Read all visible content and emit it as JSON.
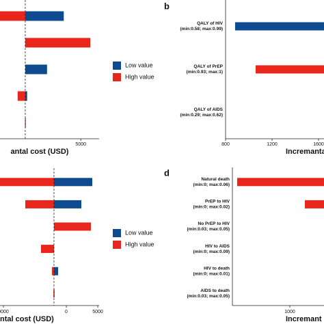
{
  "chart_data": [
    {
      "type": "tornado",
      "xlabel": "antal cost (USD)",
      "base": -3800,
      "categories": [
        null,
        null,
        null,
        null,
        null
      ],
      "series": [
        {
          "name": "Low value",
          "color": "#0d4a8f",
          "values": [
            2300,
            null,
            -350,
            -3500,
            -3750
          ]
        },
        {
          "name": "High value",
          "color": "#e8261c",
          "values": [
            -7800,
            6520,
            null,
            -5000,
            -3850
          ]
        }
      ],
      "xlim": [
        -7800,
        7900
      ],
      "xticks": [
        5000
      ]
    },
    {
      "type": "tornado",
      "panel": "b",
      "xlabel": "Incremantal",
      "base": 1700,
      "categories": [
        [
          "QALY of HIV",
          "(min:0.58; max:0.99)"
        ],
        [
          "QALY of PrEP",
          "(min:0.93; max:1)"
        ],
        [
          "QALY of AIDS",
          "(min:0.29; max:0.62)"
        ]
      ],
      "series": [
        {
          "color": "#0d4a8f",
          "values": [
            882,
            null,
            null
          ]
        },
        {
          "color": "#e8261c",
          "values": [
            null,
            1059,
            null
          ]
        }
      ],
      "xlim": [
        800,
        1647
      ],
      "xticks": [
        800,
        1200,
        1600
      ]
    },
    {
      "type": "tornado",
      "xlabel": "ntal cost (USD)",
      "base": -1960,
      "categories": [
        null,
        null,
        null,
        null,
        null,
        null
      ],
      "series": [
        {
          "name": "Low value",
          "color": "#0d4a8f",
          "values": [
            4130,
            2390,
            null,
            null,
            -1300,
            -1900
          ]
        },
        {
          "name": "High value",
          "color": "#e8261c",
          "values": [
            -10543,
            -6520,
            3910,
            -4020,
            -2280,
            -2050
          ]
        }
      ],
      "xlim": [
        -10543,
        5217
      ],
      "xticks": [
        {
          "value": -10000,
          "label": "0000"
        },
        0,
        5000
      ]
    },
    {
      "type": "tornado",
      "panel": "d",
      "xlabel": "Incremant",
      "base": 1700,
      "categories": [
        [
          "Natural death",
          "(min:0; max:0.06)"
        ],
        [
          "PrEP to HIV",
          "(min:0; max:0.02)"
        ],
        [
          "No PrEP to HIV",
          "(min:0.03; max:0.05)"
        ],
        [
          "HIV to AIDS",
          "(min:0; max:0.09)"
        ],
        [
          "HIV to death",
          "(min:0; max:0.01)"
        ],
        [
          "AIDS to death",
          "(min:0.03; max:0.05)"
        ]
      ],
      "series": [
        {
          "color": "#0d4a8f",
          "values": [
            null,
            null,
            null,
            null,
            null,
            null
          ]
        },
        {
          "color": "#e8261c",
          "values": [
            83,
            1262,
            null,
            null,
            null,
            null
          ]
        }
      ],
      "xlim": [
        0,
        1595
      ],
      "xticks": [
        1000
      ]
    }
  ]
}
